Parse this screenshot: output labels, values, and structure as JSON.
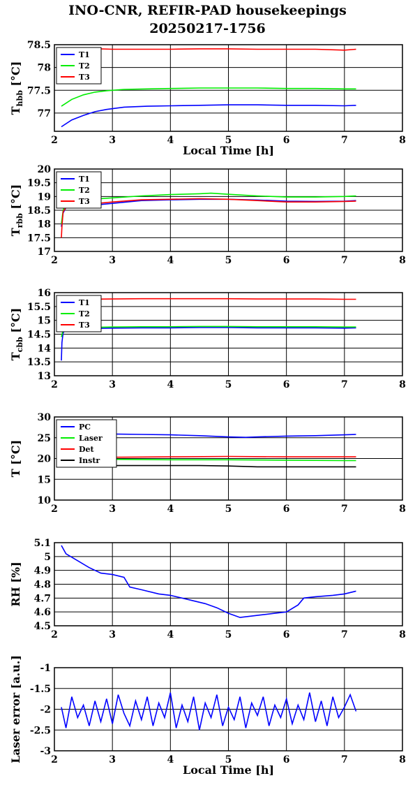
{
  "page": {
    "title_line1": "INO-CNR, REFIR-PAD housekeepings",
    "title_line2": "20250217-1756"
  },
  "colors": {
    "blue": "#0000ff",
    "green": "#00ee00",
    "red": "#ff0000",
    "black": "#000000"
  },
  "chart_data": [
    {
      "type": "line",
      "ylabel_main": "T",
      "ylabel_sub": "hbb",
      "ylabel_unit": " [°C]",
      "xlabel": "Local Time [h]",
      "xlim": [
        2,
        8
      ],
      "ylim": [
        76.6,
        78.5
      ],
      "xticks": [
        "2",
        "3",
        "4",
        "5",
        "6",
        "7",
        "8"
      ],
      "yticks": [
        {
          "v": 77,
          "label": "77"
        },
        {
          "v": 77.5,
          "label": "77.5"
        },
        {
          "v": 78,
          "label": "78"
        },
        {
          "v": 78.5,
          "label": "78.5"
        }
      ],
      "grid": true,
      "legend": "top-left",
      "series": [
        {
          "name": "T1",
          "color": "#0000ff",
          "x": [
            2.12,
            2.3,
            2.5,
            2.7,
            2.9,
            3.2,
            3.6,
            4.0,
            4.5,
            5.0,
            5.5,
            6.0,
            6.5,
            7.0,
            7.2
          ],
          "y": [
            76.7,
            76.85,
            76.95,
            77.03,
            77.08,
            77.13,
            77.15,
            77.16,
            77.17,
            77.18,
            77.18,
            77.17,
            77.17,
            77.16,
            77.17
          ]
        },
        {
          "name": "T2",
          "color": "#00ee00",
          "x": [
            2.12,
            2.3,
            2.5,
            2.7,
            2.9,
            3.2,
            3.6,
            4.0,
            4.5,
            5.0,
            5.5,
            6.0,
            6.5,
            7.0,
            7.2
          ],
          "y": [
            77.15,
            77.3,
            77.4,
            77.46,
            77.49,
            77.52,
            77.53,
            77.54,
            77.55,
            77.55,
            77.55,
            77.54,
            77.54,
            77.53,
            77.53
          ]
        },
        {
          "name": "T3",
          "color": "#ff0000",
          "x": [
            2.12,
            2.5,
            3.0,
            3.5,
            4.0,
            4.5,
            5.0,
            5.5,
            6.0,
            6.5,
            7.0,
            7.2
          ],
          "y": [
            78.4,
            78.42,
            78.4,
            78.4,
            78.4,
            78.41,
            78.41,
            78.4,
            78.4,
            78.4,
            78.38,
            78.4
          ]
        }
      ]
    },
    {
      "type": "line",
      "ylabel_main": "T",
      "ylabel_sub": "rbb",
      "ylabel_unit": " [°C]",
      "xlabel": "",
      "xlim": [
        2,
        8
      ],
      "ylim": [
        17,
        20
      ],
      "xticks": [
        "2",
        "3",
        "4",
        "5",
        "6",
        "7",
        "8"
      ],
      "yticks": [
        {
          "v": 17,
          "label": "17"
        },
        {
          "v": 17.5,
          "label": "17.5"
        },
        {
          "v": 18,
          "label": "18"
        },
        {
          "v": 18.5,
          "label": "18.5"
        },
        {
          "v": 19,
          "label": "19"
        },
        {
          "v": 19.5,
          "label": "19.5"
        },
        {
          "v": 20,
          "label": "20"
        }
      ],
      "grid": true,
      "legend": "top-left",
      "series": [
        {
          "name": "T1",
          "color": "#0000ff",
          "x": [
            2.12,
            2.15,
            2.2,
            2.5,
            3.0,
            3.5,
            4.0,
            4.5,
            5.0,
            5.5,
            6.0,
            6.5,
            7.0,
            7.2
          ],
          "y": [
            17.9,
            18.4,
            18.6,
            18.65,
            18.75,
            18.85,
            18.88,
            18.9,
            18.9,
            18.87,
            18.83,
            18.82,
            18.83,
            18.85
          ]
        },
        {
          "name": "T2",
          "color": "#00ee00",
          "x": [
            2.12,
            2.15,
            2.2,
            2.5,
            3.0,
            3.5,
            4.0,
            4.5,
            4.7,
            5.0,
            5.5,
            6.0,
            6.5,
            7.0,
            7.2
          ],
          "y": [
            18.0,
            18.5,
            18.8,
            18.88,
            18.95,
            19.02,
            19.07,
            19.1,
            19.12,
            19.08,
            19.02,
            18.98,
            18.98,
            19.0,
            19.02
          ]
        },
        {
          "name": "T3",
          "color": "#ff0000",
          "x": [
            2.12,
            2.13,
            2.15,
            2.2,
            2.5,
            3.0,
            3.5,
            4.0,
            4.5,
            5.0,
            5.5,
            6.0,
            6.5,
            7.0,
            7.2
          ],
          "y": [
            17.5,
            17.9,
            18.45,
            18.6,
            18.7,
            18.8,
            18.88,
            18.9,
            18.92,
            18.9,
            18.85,
            18.8,
            18.8,
            18.82,
            18.83
          ]
        }
      ]
    },
    {
      "type": "line",
      "ylabel_main": "T",
      "ylabel_sub": "cbb",
      "ylabel_unit": " [°C]",
      "xlabel": "",
      "xlim": [
        2,
        8
      ],
      "ylim": [
        13,
        16
      ],
      "xticks": [
        "2",
        "3",
        "4",
        "5",
        "6",
        "7",
        "8"
      ],
      "yticks": [
        {
          "v": 13,
          "label": "13"
        },
        {
          "v": 13.5,
          "label": "13.5"
        },
        {
          "v": 14,
          "label": "14"
        },
        {
          "v": 14.5,
          "label": "14.5"
        },
        {
          "v": 15,
          "label": "15"
        },
        {
          "v": 15.5,
          "label": "15.5"
        },
        {
          "v": 16,
          "label": "16"
        }
      ],
      "grid": true,
      "legend": "top-left",
      "series": [
        {
          "name": "T1",
          "color": "#0000ff",
          "x": [
            2.12,
            2.13,
            2.15,
            2.2,
            2.5,
            3.0,
            3.5,
            4.0,
            4.5,
            5.0,
            5.5,
            6.0,
            6.5,
            7.0,
            7.2
          ],
          "y": [
            13.55,
            14.2,
            14.55,
            14.68,
            14.7,
            14.72,
            14.73,
            14.73,
            14.74,
            14.74,
            14.73,
            14.73,
            14.73,
            14.72,
            14.73
          ]
        },
        {
          "name": "T2",
          "color": "#00ee00",
          "x": [
            2.12,
            2.15,
            2.2,
            2.5,
            3.0,
            3.5,
            4.0,
            4.5,
            5.0,
            5.5,
            6.0,
            6.5,
            7.0,
            7.2
          ],
          "y": [
            14.4,
            14.65,
            14.72,
            14.74,
            14.76,
            14.77,
            14.77,
            14.78,
            14.78,
            14.77,
            14.77,
            14.77,
            14.76,
            14.76
          ]
        },
        {
          "name": "T3",
          "color": "#ff0000",
          "x": [
            2.12,
            2.5,
            3.0,
            3.5,
            4.0,
            4.5,
            5.0,
            5.5,
            6.0,
            6.5,
            7.0,
            7.2
          ],
          "y": [
            15.75,
            15.76,
            15.77,
            15.78,
            15.78,
            15.78,
            15.78,
            15.77,
            15.77,
            15.77,
            15.76,
            15.76
          ]
        }
      ]
    },
    {
      "type": "line",
      "ylabel_main": "T [°C]",
      "ylabel_sub": "",
      "ylabel_unit": "",
      "xlabel": "",
      "xlim": [
        2,
        8
      ],
      "ylim": [
        10,
        30
      ],
      "xticks": [
        "2",
        "3",
        "4",
        "5",
        "6",
        "7",
        "8"
      ],
      "yticks": [
        {
          "v": 10,
          "label": "10"
        },
        {
          "v": 15,
          "label": "15"
        },
        {
          "v": 20,
          "label": "20"
        },
        {
          "v": 25,
          "label": "25"
        },
        {
          "v": 30,
          "label": "30"
        }
      ],
      "grid": true,
      "legend": "top-left",
      "series": [
        {
          "name": "PC",
          "color": "#0000ff",
          "x": [
            2.12,
            2.5,
            3.0,
            3.5,
            4.0,
            4.5,
            5.0,
            5.3,
            5.5,
            6.0,
            6.5,
            7.0,
            7.2
          ],
          "y": [
            26.0,
            26.0,
            25.9,
            25.8,
            25.7,
            25.5,
            25.2,
            25.1,
            25.2,
            25.4,
            25.5,
            25.7,
            25.8
          ]
        },
        {
          "name": "Laser",
          "color": "#00ee00",
          "x": [
            2.12,
            3.0,
            4.0,
            5.0,
            6.0,
            7.0,
            7.2
          ],
          "y": [
            19.8,
            19.8,
            19.7,
            19.7,
            19.6,
            19.5,
            19.5
          ]
        },
        {
          "name": "Det",
          "color": "#ff0000",
          "x": [
            2.12,
            3.0,
            4.0,
            5.0,
            6.0,
            7.0,
            7.2
          ],
          "y": [
            20.3,
            20.3,
            20.4,
            20.5,
            20.4,
            20.4,
            20.4
          ]
        },
        {
          "name": "Instr",
          "color": "#000000",
          "x": [
            2.12,
            3.0,
            4.0,
            4.5,
            5.0,
            5.5,
            6.0,
            6.5,
            7.0,
            7.2
          ],
          "y": [
            18.4,
            18.3,
            18.3,
            18.3,
            18.2,
            18.0,
            18.0,
            18.0,
            18.0,
            18.0
          ]
        }
      ]
    },
    {
      "type": "line",
      "ylabel_main": "RH [%]",
      "ylabel_sub": "",
      "ylabel_unit": "",
      "xlabel": "",
      "xlim": [
        2,
        8
      ],
      "ylim": [
        4.5,
        5.1
      ],
      "xticks": [
        "2",
        "3",
        "4",
        "5",
        "6",
        "7",
        "8"
      ],
      "yticks": [
        {
          "v": 4.5,
          "label": "4.5"
        },
        {
          "v": 4.6,
          "label": "4.6"
        },
        {
          "v": 4.7,
          "label": "4.7"
        },
        {
          "v": 4.8,
          "label": "4.8"
        },
        {
          "v": 4.9,
          "label": "4.9"
        },
        {
          "v": 5.0,
          "label": "5"
        },
        {
          "v": 5.1,
          "label": "5.1"
        }
      ],
      "grid": true,
      "legend": "none",
      "series": [
        {
          "name": "",
          "color": "#0000ff",
          "x": [
            2.12,
            2.2,
            2.4,
            2.6,
            2.8,
            3.0,
            3.2,
            3.3,
            3.5,
            3.8,
            4.0,
            4.3,
            4.6,
            4.8,
            5.0,
            5.2,
            5.4,
            5.6,
            5.8,
            6.0,
            6.2,
            6.3,
            6.5,
            6.8,
            7.0,
            7.2
          ],
          "y": [
            5.08,
            5.02,
            4.97,
            4.92,
            4.88,
            4.87,
            4.85,
            4.78,
            4.76,
            4.73,
            4.72,
            4.69,
            4.66,
            4.63,
            4.59,
            4.56,
            4.57,
            4.58,
            4.59,
            4.6,
            4.65,
            4.7,
            4.71,
            4.72,
            4.73,
            4.75
          ]
        }
      ]
    },
    {
      "type": "line",
      "ylabel_main": "Laser error [a.u.]",
      "ylabel_sub": "",
      "ylabel_unit": "",
      "xlabel": "Local Time [h]",
      "xlim": [
        2,
        8
      ],
      "ylim": [
        -3,
        -1
      ],
      "xticks": [
        "2",
        "3",
        "4",
        "5",
        "6",
        "7",
        "8"
      ],
      "yticks": [
        {
          "v": -3,
          "label": "-3"
        },
        {
          "v": -2.5,
          "label": "-2.5"
        },
        {
          "v": -2,
          "label": "-2"
        },
        {
          "v": -1.5,
          "label": "-1.5"
        },
        {
          "v": -1,
          "label": "-1"
        }
      ],
      "grid": true,
      "legend": "none",
      "series": [
        {
          "name": "",
          "color": "#0000ff",
          "x": [
            2.12,
            2.2,
            2.3,
            2.4,
            2.5,
            2.6,
            2.7,
            2.8,
            2.9,
            3.0,
            3.1,
            3.2,
            3.3,
            3.4,
            3.5,
            3.6,
            3.7,
            3.8,
            3.9,
            4.0,
            4.1,
            4.2,
            4.3,
            4.4,
            4.5,
            4.6,
            4.7,
            4.8,
            4.9,
            5.0,
            5.1,
            5.2,
            5.3,
            5.4,
            5.5,
            5.6,
            5.7,
            5.8,
            5.9,
            6.0,
            6.1,
            6.2,
            6.3,
            6.4,
            6.5,
            6.6,
            6.7,
            6.8,
            6.9,
            7.0,
            7.1,
            7.2
          ],
          "y": [
            -1.95,
            -2.45,
            -1.7,
            -2.2,
            -1.9,
            -2.4,
            -1.8,
            -2.3,
            -1.75,
            -2.35,
            -1.65,
            -2.1,
            -2.4,
            -1.8,
            -2.25,
            -1.7,
            -2.4,
            -1.85,
            -2.2,
            -1.6,
            -2.45,
            -1.9,
            -2.3,
            -1.7,
            -2.5,
            -1.85,
            -2.2,
            -1.65,
            -2.4,
            -1.95,
            -2.25,
            -1.7,
            -2.45,
            -1.85,
            -2.15,
            -1.7,
            -2.4,
            -1.9,
            -2.2,
            -1.75,
            -2.35,
            -1.9,
            -2.25,
            -1.6,
            -2.3,
            -1.8,
            -2.4,
            -1.7,
            -2.2,
            -1.95,
            -1.65,
            -2.05
          ]
        }
      ]
    }
  ]
}
